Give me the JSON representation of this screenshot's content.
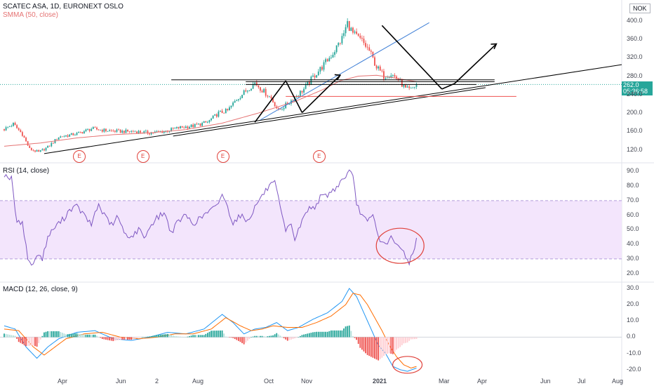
{
  "header": {
    "symbol_title": "SCATEC ASA, 1D, EURONEXT OSLO",
    "indicator_smma": "SMMA (50, close)",
    "currency_badge": "NOK"
  },
  "price_tag": {
    "value": "262.0",
    "countdown": "05:36:58"
  },
  "earnings_marker": "E",
  "rsi_label": "RSI (14, close)",
  "macd_label": "MACD (12, 26, close, 9)",
  "colors": {
    "up": "#26a69a",
    "down": "#ef5350",
    "smma": "#e57373",
    "rsi": "#7e57c2",
    "rsi_band": "#f3e5fc",
    "macd": "#2196f3",
    "signal": "#ff6d00",
    "annotation": "#000000",
    "trendline_blue": "#3f7fd6",
    "circle": "#e0413a"
  },
  "chart_data": [
    {
      "type": "candlestick",
      "title": "SCATEC ASA, 1D, EURONEXT OSLO",
      "y_ticks": [
        120.0,
        160.0,
        200.0,
        240.0,
        280.0,
        320.0,
        360.0,
        400.0
      ],
      "ylim": [
        95,
        430
      ],
      "x_ticks": [
        "Apr",
        "Jun",
        "2",
        "Aug",
        "Oct",
        "Nov",
        "2021",
        "Mar",
        "Apr",
        "Jun",
        "Jul",
        "Aug"
      ],
      "last_price": 262.0,
      "close_path_keypoints": [
        [
          0,
          165
        ],
        [
          5,
          176
        ],
        [
          10,
          154
        ],
        [
          14,
          122
        ],
        [
          19,
          115
        ],
        [
          24,
          126
        ],
        [
          30,
          148
        ],
        [
          40,
          155
        ],
        [
          48,
          166
        ],
        [
          56,
          162
        ],
        [
          65,
          160
        ],
        [
          72,
          160
        ],
        [
          80,
          157
        ],
        [
          88,
          160
        ],
        [
          96,
          168
        ],
        [
          104,
          172
        ],
        [
          112,
          180
        ],
        [
          118,
          200
        ],
        [
          123,
          205
        ],
        [
          128,
          230
        ],
        [
          133,
          248
        ],
        [
          138,
          266
        ],
        [
          142,
          250
        ],
        [
          147,
          232
        ],
        [
          151,
          205
        ],
        [
          156,
          220
        ],
        [
          160,
          234
        ],
        [
          165,
          252
        ],
        [
          170,
          278
        ],
        [
          175,
          300
        ],
        [
          181,
          330
        ],
        [
          186,
          362
        ],
        [
          189,
          395
        ],
        [
          192,
          372
        ],
        [
          197,
          356
        ],
        [
          201,
          335
        ],
        [
          205,
          300
        ],
        [
          209,
          280
        ],
        [
          213,
          285
        ],
        [
          217,
          272
        ],
        [
          221,
          252
        ],
        [
          224,
          250
        ],
        [
          227,
          262
        ]
      ],
      "smma_keypoints": [
        [
          0,
          128
        ],
        [
          20,
          135
        ],
        [
          40,
          146
        ],
        [
          60,
          153
        ],
        [
          80,
          157
        ],
        [
          100,
          164
        ],
        [
          120,
          178
        ],
        [
          140,
          200
        ],
        [
          160,
          225
        ],
        [
          175,
          250
        ],
        [
          185,
          270
        ],
        [
          195,
          280
        ],
        [
          205,
          282
        ],
        [
          215,
          276
        ],
        [
          227,
          268
        ]
      ],
      "earnings_days": [
        41,
        76,
        120,
        173
      ]
    },
    {
      "type": "line",
      "title": "RSI (14, close)",
      "y_ticks": [
        20.0,
        30.0,
        40.0,
        50.0,
        60.0,
        70.0,
        80.0,
        90.0
      ],
      "band": [
        30,
        70
      ],
      "ylim": [
        15,
        95
      ],
      "keypoints": [
        [
          0,
          88
        ],
        [
          4,
          85
        ],
        [
          7,
          54
        ],
        [
          10,
          56
        ],
        [
          13,
          30
        ],
        [
          16,
          25
        ],
        [
          18,
          34
        ],
        [
          21,
          30
        ],
        [
          24,
          45
        ],
        [
          28,
          52
        ],
        [
          33,
          58
        ],
        [
          36,
          64
        ],
        [
          40,
          66
        ],
        [
          44,
          60
        ],
        [
          48,
          53
        ],
        [
          50,
          62
        ],
        [
          52,
          67
        ],
        [
          55,
          60
        ],
        [
          60,
          52
        ],
        [
          62,
          60
        ],
        [
          66,
          48
        ],
        [
          70,
          45
        ],
        [
          74,
          50
        ],
        [
          78,
          45
        ],
        [
          80,
          52
        ],
        [
          84,
          58
        ],
        [
          88,
          62
        ],
        [
          92,
          48
        ],
        [
          96,
          56
        ],
        [
          100,
          60
        ],
        [
          104,
          54
        ],
        [
          108,
          58
        ],
        [
          112,
          62
        ],
        [
          117,
          66
        ],
        [
          120,
          75
        ],
        [
          126,
          55
        ],
        [
          130,
          60
        ],
        [
          134,
          56
        ],
        [
          140,
          70
        ],
        [
          146,
          80
        ],
        [
          149,
          82
        ],
        [
          152,
          65
        ],
        [
          155,
          48
        ],
        [
          158,
          55
        ],
        [
          160,
          43
        ],
        [
          164,
          56
        ],
        [
          167,
          64
        ],
        [
          171,
          66
        ],
        [
          174,
          72
        ],
        [
          178,
          74
        ],
        [
          182,
          78
        ],
        [
          186,
          84
        ],
        [
          190,
          90
        ],
        [
          192,
          86
        ],
        [
          194,
          68
        ],
        [
          197,
          60
        ],
        [
          200,
          55
        ],
        [
          203,
          60
        ],
        [
          206,
          45
        ],
        [
          209,
          40
        ],
        [
          213,
          44
        ],
        [
          217,
          38
        ],
        [
          220,
          35
        ],
        [
          223,
          27
        ],
        [
          225,
          35
        ],
        [
          227,
          43
        ]
      ]
    },
    {
      "type": "line",
      "title": "MACD (12, 26, close, 9)",
      "y_ticks": [
        -20.0,
        -10.0,
        0.0,
        10.0,
        20.0,
        30.0
      ],
      "ylim": [
        -24,
        33
      ],
      "macd_keypoints": [
        [
          0,
          7
        ],
        [
          6,
          5
        ],
        [
          12,
          -6
        ],
        [
          18,
          -13
        ],
        [
          24,
          -6
        ],
        [
          30,
          -1
        ],
        [
          40,
          3
        ],
        [
          50,
          4
        ],
        [
          60,
          -1
        ],
        [
          70,
          -2
        ],
        [
          80,
          0
        ],
        [
          90,
          3
        ],
        [
          100,
          2
        ],
        [
          110,
          5
        ],
        [
          120,
          14
        ],
        [
          126,
          9
        ],
        [
          132,
          2
        ],
        [
          138,
          5
        ],
        [
          144,
          6
        ],
        [
          150,
          9
        ],
        [
          156,
          4
        ],
        [
          162,
          6
        ],
        [
          170,
          11
        ],
        [
          178,
          15
        ],
        [
          186,
          22
        ],
        [
          190,
          30
        ],
        [
          194,
          25
        ],
        [
          198,
          15
        ],
        [
          202,
          5
        ],
        [
          206,
          -5
        ],
        [
          210,
          -10
        ],
        [
          214,
          -18
        ],
        [
          218,
          -20
        ],
        [
          222,
          -21
        ],
        [
          227,
          -19
        ]
      ],
      "signal_keypoints": [
        [
          0,
          5
        ],
        [
          8,
          4
        ],
        [
          16,
          -6
        ],
        [
          22,
          -11
        ],
        [
          28,
          -6
        ],
        [
          34,
          -1
        ],
        [
          44,
          2
        ],
        [
          54,
          3
        ],
        [
          64,
          0
        ],
        [
          74,
          -1
        ],
        [
          84,
          0
        ],
        [
          94,
          2
        ],
        [
          104,
          2
        ],
        [
          114,
          5
        ],
        [
          122,
          12
        ],
        [
          130,
          7
        ],
        [
          136,
          4
        ],
        [
          142,
          5
        ],
        [
          148,
          7
        ],
        [
          156,
          6
        ],
        [
          164,
          6
        ],
        [
          172,
          9
        ],
        [
          180,
          13
        ],
        [
          188,
          20
        ],
        [
          192,
          27
        ],
        [
          196,
          26
        ],
        [
          200,
          20
        ],
        [
          204,
          12
        ],
        [
          208,
          4
        ],
        [
          212,
          -5
        ],
        [
          216,
          -12
        ],
        [
          220,
          -17
        ],
        [
          224,
          -19
        ],
        [
          227,
          -18
        ]
      ]
    }
  ]
}
